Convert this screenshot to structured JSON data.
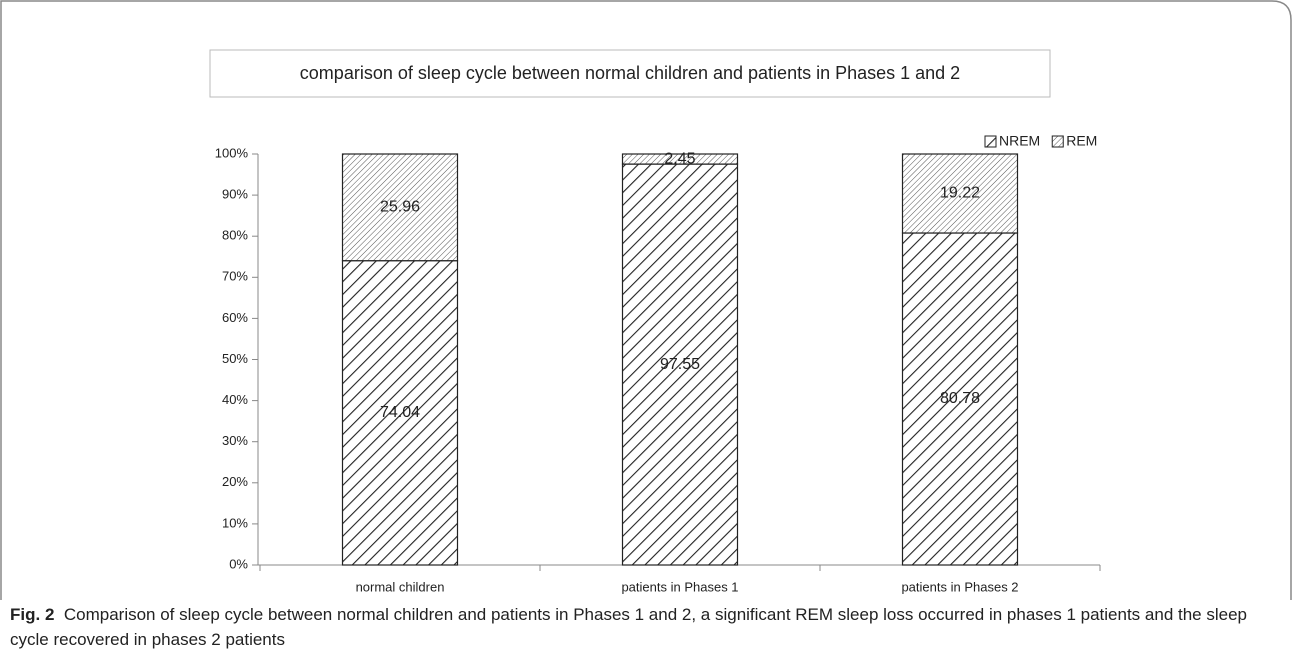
{
  "chart_data": {
    "type": "stacked_bar",
    "title": "comparison of sleep cycle between normal children and patients in Phases 1 and 2",
    "categories": [
      "normal children",
      "patients in Phases 1",
      "patients in Phases 2"
    ],
    "series": [
      {
        "name": "NREM",
        "values": [
          74.04,
          97.55,
          80.78
        ]
      },
      {
        "name": "REM",
        "values": [
          25.96,
          2.45,
          19.22
        ]
      }
    ],
    "ylim": [
      0,
      100
    ],
    "yticks": [
      {
        "value": 0,
        "label": "0%"
      },
      {
        "value": 10,
        "label": "10%"
      },
      {
        "value": 20,
        "label": "20%"
      },
      {
        "value": 30,
        "label": "30%"
      },
      {
        "value": 40,
        "label": "40%"
      },
      {
        "value": 50,
        "label": "50%"
      },
      {
        "value": 60,
        "label": "60%"
      },
      {
        "value": 70,
        "label": "70%"
      },
      {
        "value": 80,
        "label": "80%"
      },
      {
        "value": 90,
        "label": "90%"
      },
      {
        "value": 100,
        "label": "100%"
      }
    ],
    "legend": "top-right"
  },
  "caption": {
    "label": "Fig. 2",
    "text": "Comparison of sleep cycle between normal children and patients in Phases 1 and 2, a significant REM sleep loss occurred in phases 1 patients and the sleep cycle recovered in phases 2 patients"
  }
}
